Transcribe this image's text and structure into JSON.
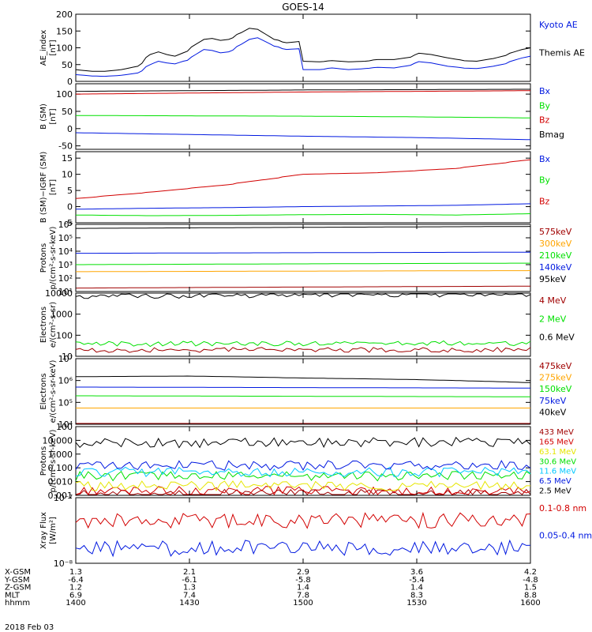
{
  "title": "GOES-14",
  "colors": {
    "black": "#000000",
    "red": "#d20000",
    "green": "#00e000",
    "blue": "#0018e0",
    "orange": "#ffa500",
    "cyan": "#00c8ff",
    "yellow": "#e6e600",
    "darkred": "#a00000"
  },
  "chart_data": [
    {
      "id": "ae",
      "type": "line",
      "ylabel": [
        "AE_index",
        "[nT]"
      ],
      "ylim": [
        0,
        200
      ],
      "yticks": [
        "0",
        "50",
        "100",
        "150",
        "200"
      ],
      "yscale": "linear",
      "series": [
        {
          "name": "Kyoto AE",
          "color": "blue",
          "x": [
            1400,
            1404,
            1408,
            1412,
            1416,
            1420,
            1422,
            1424,
            1426,
            1428,
            1430,
            1432,
            1434,
            1436,
            1438,
            1440,
            1442,
            1444,
            1446,
            1448,
            1450,
            1452,
            1456,
            1460,
            1464,
            1468,
            1472,
            1476,
            1480,
            1484,
            1488,
            1492,
            1496,
            1500,
            1504,
            1508,
            1512,
            1516,
            1520,
            1524,
            1528,
            1530,
            1534,
            1538,
            1542,
            1546,
            1550,
            1554,
            1558,
            1560
          ],
          "values": [
            20,
            16,
            15,
            18,
            25,
            50,
            60,
            55,
            52,
            60,
            65,
            80,
            95,
            92,
            85,
            88,
            98,
            110,
            125,
            130,
            118,
            105,
            95,
            98,
            85,
            80,
            75,
            70,
            55,
            45,
            40,
            45,
            38,
            35,
            35,
            40,
            35,
            38,
            42,
            40,
            48,
            60,
            55,
            45,
            40,
            38,
            45,
            55,
            70,
            75
          ]
        },
        {
          "name": "Themis AE",
          "color": "black",
          "x": [
            1400,
            1404,
            1408,
            1412,
            1416,
            1420,
            1422,
            1424,
            1426,
            1428,
            1430,
            1432,
            1434,
            1436,
            1438,
            1440,
            1442,
            1444,
            1446,
            1448,
            1450,
            1452,
            1456,
            1460,
            1464,
            1468,
            1472,
            1476,
            1480,
            1484,
            1488,
            1492,
            1496,
            1500,
            1504,
            1508,
            1512,
            1516,
            1520,
            1524,
            1528,
            1530,
            1534,
            1538,
            1542,
            1546,
            1550,
            1554,
            1558,
            1560
          ],
          "values": [
            35,
            30,
            30,
            35,
            45,
            80,
            88,
            80,
            75,
            85,
            95,
            110,
            125,
            128,
            122,
            125,
            135,
            145,
            158,
            155,
            140,
            125,
            115,
            120,
            110,
            100,
            95,
            92,
            78,
            70,
            65,
            70,
            62,
            60,
            58,
            62,
            58,
            60,
            65,
            65,
            72,
            85,
            80,
            70,
            62,
            60,
            68,
            80,
            95,
            100
          ]
        }
      ]
    },
    {
      "id": "bsm",
      "type": "line",
      "ylabel": [
        "B (SM)",
        "[nT]"
      ],
      "ylim": [
        -60,
        130
      ],
      "yticks": [
        "-50",
        "0",
        "50",
        "100"
      ],
      "yscale": "linear",
      "series": [
        {
          "name": "Bx",
          "color": "blue",
          "x": [
            1400,
            1430,
            1500,
            1530,
            1600
          ],
          "values": [
            -12,
            -17,
            -22,
            -26,
            -32
          ]
        },
        {
          "name": "By",
          "color": "green",
          "x": [
            1400,
            1430,
            1500,
            1530,
            1600
          ],
          "values": [
            38,
            37,
            36,
            34,
            31
          ]
        },
        {
          "name": "Bz",
          "color": "red",
          "x": [
            1400,
            1430,
            1500,
            1530,
            1600
          ],
          "values": [
            100,
            103,
            106,
            108,
            110
          ]
        },
        {
          "name": "Bmag",
          "color": "black",
          "x": [
            1400,
            1430,
            1500,
            1530,
            1600
          ],
          "values": [
            108,
            110,
            112,
            113,
            114
          ]
        }
      ]
    },
    {
      "id": "bigrf",
      "type": "line",
      "ylabel": [
        "B (SM)−IGRF (SM)",
        "[nT]"
      ],
      "ylim": [
        -5,
        17
      ],
      "yticks": [
        "-5",
        "0",
        "5",
        "10",
        "15"
      ],
      "yscale": "linear",
      "series": [
        {
          "name": "Bx",
          "color": "blue",
          "x": [
            1400,
            1420,
            1440,
            1500,
            1520,
            1540,
            1600
          ],
          "values": [
            -0.8,
            -0.5,
            -0.3,
            0.0,
            0.2,
            0.4,
            0.9
          ]
        },
        {
          "name": "By",
          "color": "green",
          "x": [
            1400,
            1420,
            1440,
            1500,
            1520,
            1540,
            1600
          ],
          "values": [
            -2.6,
            -2.8,
            -2.7,
            -2.5,
            -2.4,
            -2.6,
            -2.2
          ]
        },
        {
          "name": "Bz",
          "color": "red",
          "x": [
            1400,
            1420,
            1440,
            1500,
            1520,
            1540,
            1600
          ],
          "values": [
            2.5,
            4.5,
            6.8,
            10.0,
            10.5,
            11.8,
            14.5
          ]
        }
      ]
    },
    {
      "id": "protons1",
      "type": "line",
      "ylabel": [
        "Protons",
        "p/(cm²-s-sr-keV)"
      ],
      "ylim": [
        10,
        1000000
      ],
      "yticks": [
        "10¹",
        "10²",
        "10³",
        "10⁴",
        "10⁵",
        "10⁶"
      ],
      "yscale": "log",
      "series": [
        {
          "name": "575keV",
          "color": "darkred",
          "x": [
            1400,
            1600
          ],
          "values": [
            18,
            25
          ]
        },
        {
          "name": "300keV",
          "color": "orange",
          "x": [
            1400,
            1600
          ],
          "values": [
            300,
            360
          ]
        },
        {
          "name": "210keV",
          "color": "green",
          "x": [
            1400,
            1600
          ],
          "values": [
            1000,
            1300
          ]
        },
        {
          "name": "140keV",
          "color": "blue",
          "x": [
            1400,
            1600
          ],
          "values": [
            7000,
            8500
          ]
        },
        {
          "name": "95keV",
          "color": "black",
          "x": [
            1400,
            1600
          ],
          "values": [
            500000,
            700000
          ]
        }
      ]
    },
    {
      "id": "electrons1",
      "type": "line",
      "ylabel": [
        "Electrons",
        "e/(cm²-s-sr)"
      ],
      "ylim": [
        10,
        10000
      ],
      "yticks": [
        "10",
        "100",
        "1000",
        "10000"
      ],
      "yscale": "log",
      "series": [
        {
          "name": "4 MeV",
          "color": "darkred",
          "x": [
            1400,
            1600
          ],
          "values": [
            20,
            20
          ]
        },
        {
          "name": "2 MeV",
          "color": "green",
          "x": [
            1400,
            1600
          ],
          "values": [
            38,
            42
          ]
        },
        {
          "name": "0.6 MeV",
          "color": "black",
          "x": [
            1400,
            1600
          ],
          "values": [
            7000,
            9000
          ]
        }
      ]
    },
    {
      "id": "electrons2",
      "type": "line",
      "ylabel": [
        "Electrons",
        "e/(cm²-s-sr-keV)"
      ],
      "ylim": [
        10000,
        10000000
      ],
      "yticks": [
        "10⁴",
        "10⁵",
        "10⁶",
        "10⁷"
      ],
      "yscale": "log",
      "series": [
        {
          "name": "475keV",
          "color": "darkred",
          "x": [
            1400,
            1600
          ],
          "values": [
            10000,
            10000
          ]
        },
        {
          "name": "275keV",
          "color": "orange",
          "x": [
            1400,
            1600
          ],
          "values": [
            55000,
            55000
          ]
        },
        {
          "name": "150keV",
          "color": "green",
          "x": [
            1400,
            1600
          ],
          "values": [
            200000,
            180000
          ]
        },
        {
          "name": "75keV",
          "color": "blue",
          "x": [
            1400,
            1600
          ],
          "values": [
            500000,
            450000
          ]
        },
        {
          "name": "40keV",
          "color": "black",
          "x": [
            1400,
            1430,
            1500,
            1530,
            1600
          ],
          "values": [
            1500000,
            1600000,
            1300000,
            1100000,
            800000
          ]
        }
      ]
    },
    {
      "id": "protons2",
      "type": "line",
      "ylabel": [
        "Protons",
        "p/(cm²-s-sr-keV)"
      ],
      "ylim": [
        0.001,
        100
      ],
      "yticks": [
        "0.001",
        "0.010",
        "0.100",
        "1.000",
        "10.000",
        "100"
      ],
      "yscale": "log",
      "series": [
        {
          "name": "433 MeV",
          "color": "darkred",
          "x": [
            1400,
            1600
          ],
          "values": [
            0.0012,
            0.0012
          ]
        },
        {
          "name": "165 MeV",
          "color": "red",
          "x": [
            1400,
            1600
          ],
          "values": [
            0.002,
            0.002
          ]
        },
        {
          "name": "63.1 MeV",
          "color": "yellow",
          "x": [
            1400,
            1600
          ],
          "values": [
            0.005,
            0.005
          ]
        },
        {
          "name": "30.6 MeV",
          "color": "green",
          "x": [
            1400,
            1600
          ],
          "values": [
            0.025,
            0.025
          ]
        },
        {
          "name": "11.6 MeV",
          "color": "cyan",
          "x": [
            1400,
            1600
          ],
          "values": [
            0.05,
            0.05
          ]
        },
        {
          "name": "6.5 MeV",
          "color": "blue",
          "x": [
            1400,
            1600
          ],
          "values": [
            0.15,
            0.15
          ]
        },
        {
          "name": "2.5 MeV",
          "color": "black",
          "x": [
            1400,
            1600
          ],
          "values": [
            6,
            8
          ]
        }
      ]
    },
    {
      "id": "xray",
      "type": "line",
      "ylabel": [
        "Xray Flux",
        "[W/m²]"
      ],
      "ylim": [
        1e-08,
        1e-07
      ],
      "yticks": [
        "10⁻⁸",
        "10⁻⁷"
      ],
      "yscale": "log",
      "series": [
        {
          "name": "0.1-0.8 nm",
          "color": "red",
          "x": [
            1400,
            1600
          ],
          "values": [
            4.5e-08,
            4.5e-08
          ]
        },
        {
          "name": "0.05-0.4 nm",
          "color": "blue",
          "x": [
            1400,
            1600
          ],
          "values": [
            1.7e-08,
            1.7e-08
          ]
        }
      ]
    }
  ],
  "xaxis": {
    "ticks_hhmm": [
      1400,
      1430,
      1500,
      1530,
      1600
    ],
    "rows": [
      {
        "label": "X-GSM",
        "values": [
          "1.3",
          "2.1",
          "2.9",
          "3.6",
          "4.2"
        ]
      },
      {
        "label": "Y-GSM",
        "values": [
          "-6.4",
          "-6.1",
          "-5.8",
          "-5.4",
          "-4.8"
        ]
      },
      {
        "label": "Z-GSM",
        "values": [
          "1.2",
          "1.3",
          "1.4",
          "1.4",
          "1.5"
        ]
      },
      {
        "label": "MLT",
        "values": [
          "6.9",
          "7.4",
          "7.8",
          "8.3",
          "8.8"
        ]
      },
      {
        "label": "hhmm",
        "values": [
          "1400",
          "1430",
          "1500",
          "1530",
          "1600"
        ]
      }
    ],
    "date": "2018 Feb 03"
  }
}
